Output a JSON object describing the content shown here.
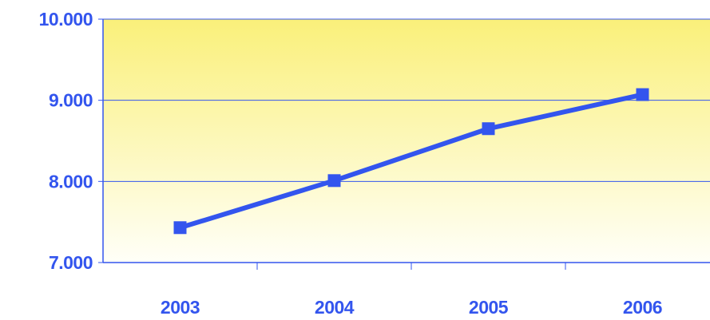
{
  "chart_data": {
    "type": "line",
    "title": "",
    "xlabel": "",
    "ylabel": "",
    "categories": [
      "2003",
      "2004",
      "2005",
      "2006"
    ],
    "series": [
      {
        "values": [
          7430,
          8010,
          8650,
          9070
        ]
      }
    ],
    "ylim": [
      7000,
      10000
    ],
    "yticks": [
      7000,
      8000,
      9000,
      10000
    ],
    "ytick_labels": [
      "7.000",
      "8.000",
      "9.000",
      "10.000"
    ],
    "grid": "horizontal",
    "legend": "none",
    "colors": {
      "series": "#3355EE",
      "labels": "#3355EE",
      "axis": "#3355EE",
      "background_top": "#FAF07A",
      "background_bottom": "#FFFFF8"
    },
    "marker": "square"
  }
}
